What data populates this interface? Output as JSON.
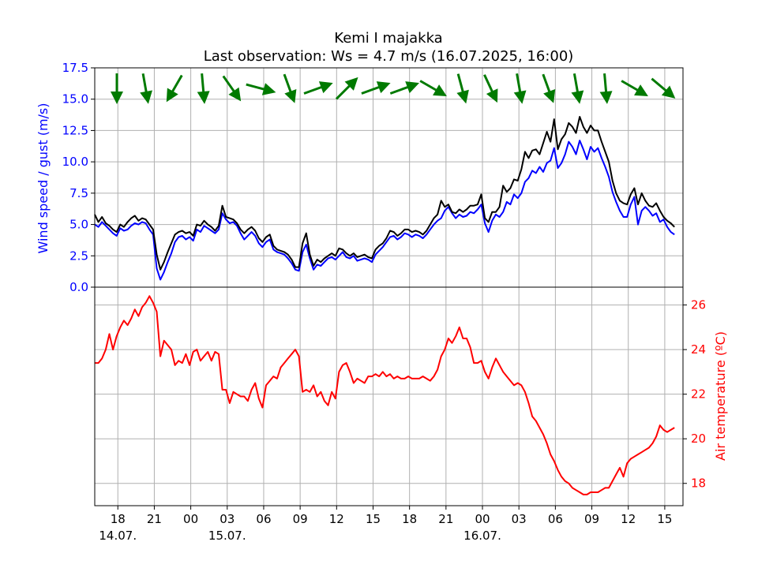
{
  "chart_data": [
    {
      "type": "line",
      "title": "Kemi I majakka",
      "subtitle": "Last observation: Ws = 4.7 m/s (16.07.2025, 16:00)",
      "ylabel": "Wind speed / gust (m/s)",
      "ylim": [
        0,
        17.5
      ],
      "yticks": [
        "0.0",
        "2.5",
        "5.0",
        "7.5",
        "10.0",
        "12.5",
        "15.0",
        "17.5"
      ],
      "x_ticks": [
        {
          "t": 18,
          "label": "18",
          "date": "14.07."
        },
        {
          "t": 21,
          "label": "21"
        },
        {
          "t": 24,
          "label": "00"
        },
        {
          "t": 27,
          "label": "03",
          "date": "15.07."
        },
        {
          "t": 30,
          "label": "06"
        },
        {
          "t": 33,
          "label": "09"
        },
        {
          "t": 36,
          "label": "12"
        },
        {
          "t": 39,
          "label": "15"
        },
        {
          "t": 42,
          "label": "18"
        },
        {
          "t": 45,
          "label": "21"
        },
        {
          "t": 48,
          "label": "00",
          "date": "16.07."
        },
        {
          "t": 51,
          "label": "03"
        },
        {
          "t": 54,
          "label": "06"
        },
        {
          "t": 57,
          "label": "09"
        },
        {
          "t": 60,
          "label": "12"
        },
        {
          "t": 63,
          "label": "15"
        }
      ],
      "xlim": [
        16.1,
        64.5
      ],
      "grid": true,
      "series": [
        {
          "color": "#0000ff",
          "x": [
            16.1,
            16.4,
            16.7,
            17.0,
            17.3,
            17.6,
            17.9,
            18.2,
            18.5,
            18.8,
            19.1,
            19.4,
            19.7,
            20.0,
            20.3,
            20.6,
            20.9,
            21.2,
            21.5,
            21.8,
            22.1,
            22.4,
            22.7,
            23.0,
            23.3,
            23.6,
            23.9,
            24.2,
            24.5,
            24.8,
            25.1,
            25.4,
            25.7,
            26.0,
            26.3,
            26.6,
            26.9,
            27.2,
            27.5,
            27.8,
            28.1,
            28.4,
            28.7,
            29.0,
            29.3,
            29.6,
            29.9,
            30.2,
            30.5,
            30.8,
            31.1,
            31.4,
            31.7,
            32.0,
            32.3,
            32.6,
            32.9,
            33.2,
            33.5,
            33.8,
            34.1,
            34.4,
            34.7,
            35.0,
            35.3,
            35.6,
            35.9,
            36.2,
            36.5,
            36.8,
            37.1,
            37.4,
            37.7,
            38.0,
            38.3,
            38.6,
            38.9,
            39.2,
            39.5,
            39.8,
            40.1,
            40.4,
            40.7,
            41.0,
            41.3,
            41.6,
            41.9,
            42.2,
            42.5,
            42.8,
            43.1,
            43.4,
            43.7,
            44.0,
            44.3,
            44.6,
            44.9,
            45.2,
            45.5,
            45.8,
            46.1,
            46.4,
            46.7,
            47.0,
            47.3,
            47.6,
            47.9,
            48.2,
            48.5,
            48.8,
            49.1,
            49.4,
            49.7,
            50.0,
            50.3,
            50.6,
            50.9,
            51.2,
            51.5,
            51.8,
            52.1,
            52.4,
            52.7,
            53.0,
            53.3,
            53.6,
            53.9,
            54.2,
            54.5,
            54.8,
            55.1,
            55.4,
            55.7,
            56.0,
            56.3,
            56.6,
            56.9,
            57.2,
            57.5,
            57.8,
            58.1,
            58.4,
            58.7,
            59.0,
            59.3,
            59.6,
            59.9,
            60.2,
            60.5,
            60.8,
            61.1,
            61.4,
            61.7,
            62.0,
            62.3,
            62.6,
            62.9,
            63.2,
            63.5,
            63.8
          ],
          "y": [
            5.0,
            4.8,
            5.2,
            4.9,
            4.6,
            4.3,
            4.1,
            4.7,
            4.5,
            4.6,
            4.9,
            5.1,
            5.0,
            5.2,
            5.1,
            4.6,
            4.2,
            1.5,
            0.6,
            1.2,
            2.0,
            2.7,
            3.6,
            4.0,
            4.1,
            3.8,
            4.0,
            3.7,
            4.6,
            4.4,
            4.9,
            4.7,
            4.5,
            4.3,
            4.6,
            5.9,
            5.4,
            5.1,
            5.2,
            4.9,
            4.3,
            3.8,
            4.1,
            4.4,
            4.1,
            3.5,
            3.2,
            3.6,
            3.8,
            3.0,
            2.8,
            2.7,
            2.6,
            2.3,
            1.9,
            1.4,
            1.3,
            2.8,
            3.4,
            2.3,
            1.4,
            1.8,
            1.7,
            2.0,
            2.3,
            2.4,
            2.2,
            2.5,
            2.8,
            2.4,
            2.3,
            2.5,
            2.1,
            2.2,
            2.3,
            2.2,
            2.0,
            2.6,
            2.9,
            3.2,
            3.6,
            4.0,
            4.1,
            3.8,
            4.0,
            4.3,
            4.2,
            4.0,
            4.2,
            4.1,
            3.9,
            4.2,
            4.6,
            5.0,
            5.3,
            5.5,
            6.1,
            6.4,
            5.9,
            5.5,
            5.8,
            5.6,
            5.7,
            6.0,
            5.9,
            6.2,
            6.6,
            5.1,
            4.4,
            5.3,
            5.8,
            5.6,
            6.0,
            6.8,
            6.6,
            7.4,
            7.1,
            7.5,
            8.4,
            8.7,
            9.3,
            9.1,
            9.6,
            9.2,
            9.9,
            10.1,
            11.1,
            9.5,
            9.9,
            10.6,
            11.6,
            11.2,
            10.6,
            11.7,
            11.0,
            10.2,
            11.2,
            10.8,
            11.1,
            10.3,
            9.6,
            8.8,
            7.6,
            6.8,
            6.1,
            5.6,
            5.6,
            6.6,
            7.2,
            5.0,
            6.1,
            6.4,
            6.1,
            5.7,
            5.9,
            5.2,
            5.4,
            4.8,
            4.4,
            4.2
          ]
        },
        {
          "color": "#000000",
          "x": [
            16.1,
            16.4,
            16.7,
            17.0,
            17.3,
            17.6,
            17.9,
            18.2,
            18.5,
            18.8,
            19.1,
            19.4,
            19.7,
            20.0,
            20.3,
            20.6,
            20.9,
            21.2,
            21.5,
            21.8,
            22.1,
            22.4,
            22.7,
            23.0,
            23.3,
            23.6,
            23.9,
            24.2,
            24.5,
            24.8,
            25.1,
            25.4,
            25.7,
            26.0,
            26.3,
            26.6,
            26.9,
            27.2,
            27.5,
            27.8,
            28.1,
            28.4,
            28.7,
            29.0,
            29.3,
            29.6,
            29.9,
            30.2,
            30.5,
            30.8,
            31.1,
            31.4,
            31.7,
            32.0,
            32.3,
            32.6,
            32.9,
            33.2,
            33.5,
            33.8,
            34.1,
            34.4,
            34.7,
            35.0,
            35.3,
            35.6,
            35.9,
            36.2,
            36.5,
            36.8,
            37.1,
            37.4,
            37.7,
            38.0,
            38.3,
            38.6,
            38.9,
            39.2,
            39.5,
            39.8,
            40.1,
            40.4,
            40.7,
            41.0,
            41.3,
            41.6,
            41.9,
            42.2,
            42.5,
            42.8,
            43.1,
            43.4,
            43.7,
            44.0,
            44.3,
            44.6,
            44.9,
            45.2,
            45.5,
            45.8,
            46.1,
            46.4,
            46.7,
            47.0,
            47.3,
            47.6,
            47.9,
            48.2,
            48.5,
            48.8,
            49.1,
            49.4,
            49.7,
            50.0,
            50.3,
            50.6,
            50.9,
            51.2,
            51.5,
            51.8,
            52.1,
            52.4,
            52.7,
            53.0,
            53.3,
            53.6,
            53.9,
            54.2,
            54.5,
            54.8,
            55.1,
            55.4,
            55.7,
            56.0,
            56.3,
            56.6,
            56.9,
            57.2,
            57.5,
            57.8,
            58.1,
            58.4,
            58.7,
            59.0,
            59.3,
            59.6,
            59.9,
            60.2,
            60.5,
            60.8,
            61.1,
            61.4,
            61.7,
            62.0,
            62.3,
            62.6,
            62.9,
            63.2,
            63.5,
            63.8
          ],
          "y": [
            5.8,
            5.2,
            5.6,
            5.1,
            4.9,
            4.6,
            4.4,
            5.0,
            4.8,
            5.2,
            5.5,
            5.7,
            5.3,
            5.5,
            5.4,
            5.0,
            4.6,
            2.6,
            1.4,
            2.0,
            2.8,
            3.5,
            4.2,
            4.4,
            4.5,
            4.3,
            4.4,
            4.1,
            5.0,
            4.9,
            5.3,
            5.0,
            4.8,
            4.5,
            4.9,
            6.5,
            5.6,
            5.5,
            5.4,
            5.1,
            4.6,
            4.3,
            4.6,
            4.8,
            4.5,
            3.9,
            3.6,
            4.0,
            4.2,
            3.3,
            3.0,
            2.9,
            2.8,
            2.6,
            2.2,
            1.6,
            1.6,
            3.5,
            4.3,
            2.6,
            1.7,
            2.2,
            2.0,
            2.3,
            2.5,
            2.7,
            2.5,
            3.1,
            3.0,
            2.7,
            2.5,
            2.7,
            2.4,
            2.5,
            2.6,
            2.4,
            2.3,
            3.0,
            3.3,
            3.5,
            3.9,
            4.5,
            4.4,
            4.1,
            4.3,
            4.6,
            4.6,
            4.4,
            4.5,
            4.4,
            4.2,
            4.5,
            5.0,
            5.5,
            5.8,
            6.9,
            6.4,
            6.6,
            6.0,
            5.9,
            6.2,
            6.0,
            6.2,
            6.5,
            6.5,
            6.6,
            7.4,
            5.5,
            5.2,
            6.0,
            6.0,
            6.4,
            8.1,
            7.6,
            7.9,
            8.6,
            8.5,
            9.4,
            10.8,
            10.3,
            10.9,
            11.0,
            10.6,
            11.5,
            12.4,
            11.6,
            13.4,
            11.0,
            11.8,
            12.2,
            13.1,
            12.8,
            12.3,
            13.6,
            12.8,
            12.3,
            12.9,
            12.5,
            12.5,
            11.6,
            10.8,
            10.0,
            8.5,
            7.5,
            6.9,
            6.7,
            6.6,
            7.4,
            7.9,
            6.6,
            7.5,
            6.9,
            6.5,
            6.4,
            6.7,
            6.1,
            5.6,
            5.3,
            5.1,
            4.8
          ]
        }
      ],
      "wind_directions_deg": [
        0,
        -10,
        30,
        -5,
        -35,
        -75,
        -20,
        -110,
        -135,
        -110,
        -110,
        -60,
        -15,
        -25,
        -10,
        -20,
        -10,
        -5,
        -60,
        -50
      ]
    },
    {
      "type": "line",
      "ylabel": "Air temperature (ºC)",
      "ylim": [
        17.0,
        26.8
      ],
      "yticks": [
        "18",
        "20",
        "22",
        "24",
        "26"
      ],
      "xlim": [
        16.1,
        64.5
      ],
      "grid": true,
      "series": [
        {
          "color": "#ff0000",
          "x": [
            16.1,
            16.4,
            16.7,
            17.0,
            17.3,
            17.6,
            17.9,
            18.2,
            18.5,
            18.8,
            19.1,
            19.4,
            19.7,
            20.0,
            20.3,
            20.6,
            20.9,
            21.2,
            21.5,
            21.8,
            22.1,
            22.4,
            22.7,
            23.0,
            23.3,
            23.6,
            23.9,
            24.2,
            24.5,
            24.8,
            25.1,
            25.4,
            25.7,
            26.0,
            26.3,
            26.6,
            26.9,
            27.2,
            27.5,
            27.8,
            28.1,
            28.4,
            28.7,
            29.0,
            29.3,
            29.6,
            29.9,
            30.2,
            30.5,
            30.8,
            31.1,
            31.4,
            31.7,
            32.0,
            32.3,
            32.6,
            32.9,
            33.2,
            33.5,
            33.8,
            34.1,
            34.4,
            34.7,
            35.0,
            35.3,
            35.6,
            35.9,
            36.2,
            36.5,
            36.8,
            37.1,
            37.4,
            37.7,
            38.0,
            38.3,
            38.6,
            38.9,
            39.2,
            39.5,
            39.8,
            40.1,
            40.4,
            40.7,
            41.0,
            41.3,
            41.6,
            41.9,
            42.2,
            42.5,
            42.8,
            43.1,
            43.4,
            43.7,
            44.0,
            44.3,
            44.6,
            44.9,
            45.2,
            45.5,
            45.8,
            46.1,
            46.4,
            46.7,
            47.0,
            47.3,
            47.6,
            47.9,
            48.2,
            48.5,
            48.8,
            49.1,
            49.4,
            49.7,
            50.0,
            50.3,
            50.6,
            50.9,
            51.2,
            51.5,
            51.8,
            52.1,
            52.4,
            52.7,
            53.0,
            53.3,
            53.6,
            53.9,
            54.2,
            54.5,
            54.8,
            55.1,
            55.4,
            55.7,
            56.0,
            56.3,
            56.6,
            56.9,
            57.2,
            57.5,
            57.8,
            58.1,
            58.4,
            58.7,
            59.0,
            59.3,
            59.6,
            59.9,
            60.2,
            60.5,
            60.8,
            61.1,
            61.4,
            61.7,
            62.0,
            62.3,
            62.6,
            62.9,
            63.2,
            63.5,
            63.8
          ],
          "y": [
            23.4,
            23.4,
            23.6,
            24.0,
            24.7,
            24.0,
            24.6,
            25.0,
            25.3,
            25.1,
            25.4,
            25.8,
            25.5,
            25.9,
            26.1,
            26.4,
            26.1,
            25.7,
            23.7,
            24.4,
            24.2,
            24.0,
            23.3,
            23.5,
            23.4,
            23.8,
            23.3,
            23.9,
            24.0,
            23.5,
            23.7,
            23.9,
            23.5,
            23.9,
            23.8,
            22.2,
            22.2,
            21.6,
            22.1,
            22.0,
            21.9,
            21.9,
            21.7,
            22.2,
            22.5,
            21.8,
            21.4,
            22.4,
            22.6,
            22.8,
            22.7,
            23.2,
            23.4,
            23.6,
            23.8,
            24.0,
            23.7,
            22.1,
            22.2,
            22.1,
            22.4,
            21.9,
            22.1,
            21.7,
            21.5,
            22.1,
            21.8,
            23.0,
            23.3,
            23.4,
            23.0,
            22.5,
            22.7,
            22.6,
            22.5,
            22.8,
            22.8,
            22.9,
            22.8,
            23.0,
            22.8,
            22.9,
            22.7,
            22.8,
            22.7,
            22.7,
            22.8,
            22.7,
            22.7,
            22.7,
            22.8,
            22.7,
            22.6,
            22.8,
            23.1,
            23.7,
            24.0,
            24.5,
            24.3,
            24.6,
            25.0,
            24.5,
            24.5,
            24.1,
            23.4,
            23.4,
            23.5,
            23.0,
            22.7,
            23.2,
            23.6,
            23.3,
            23.0,
            22.8,
            22.6,
            22.4,
            22.5,
            22.4,
            22.1,
            21.6,
            21.0,
            20.8,
            20.5,
            20.2,
            19.8,
            19.3,
            19.0,
            18.6,
            18.3,
            18.1,
            18.0,
            17.8,
            17.7,
            17.6,
            17.5,
            17.5,
            17.6,
            17.6,
            17.6,
            17.7,
            17.8,
            17.8,
            18.1,
            18.4,
            18.7,
            18.3,
            18.9,
            19.1,
            19.2,
            19.3,
            19.4,
            19.5,
            19.6,
            19.8,
            20.1,
            20.6,
            20.4,
            20.3,
            20.4,
            20.5
          ]
        }
      ]
    }
  ]
}
